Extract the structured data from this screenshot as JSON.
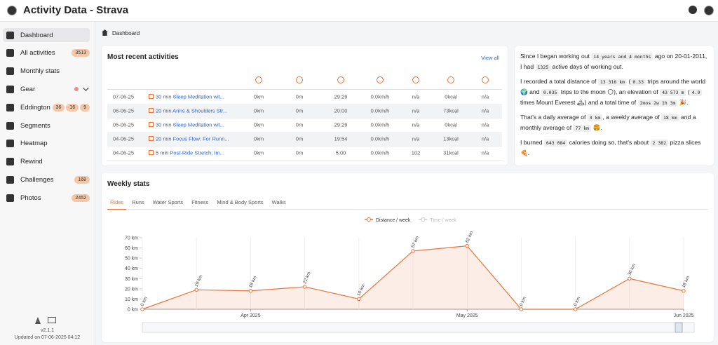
{
  "header": {
    "title": "Activity Data - Strava"
  },
  "sidebar": {
    "items": [
      {
        "label": "Dashboard"
      },
      {
        "label": "All activities",
        "badges": [
          3513
        ]
      },
      {
        "label": "Monthly stats"
      },
      {
        "label": "Gear"
      },
      {
        "label": "Eddington",
        "badges": [
          36,
          16,
          9
        ]
      },
      {
        "label": "Segments"
      },
      {
        "label": "Heatmap"
      },
      {
        "label": "Rewind"
      },
      {
        "label": "Challenges",
        "badges": [
          168
        ]
      },
      {
        "label": "Photos",
        "badges": [
          2452
        ]
      }
    ],
    "version": "v2.1.1",
    "updated": "Updated on 07-06-2025 04:12"
  },
  "breadcrumb": "Dashboard",
  "recent": {
    "title": "Most recent activities",
    "link": "View all",
    "rows": [
      [
        "07-06-25",
        "30 min Sleep Meditation wit...",
        "0km",
        "0m",
        "29:29",
        "0.0km/h",
        "n/a",
        "0kcal",
        "n/a"
      ],
      [
        "06-06-25",
        "20 min Arms & Shoulders Str...",
        "0km",
        "0m",
        "20:00",
        "0.0km/h",
        "n/a",
        "73kcal",
        "n/a"
      ],
      [
        "05-06-25",
        "30 min Sleep Meditation wit...",
        "0km",
        "0m",
        "29:29",
        "0.0km/h",
        "n/a",
        "0kcal",
        "n/a"
      ],
      [
        "04-06-25",
        "20 min Focus Flow: For Runn...",
        "0km",
        "0m",
        "19:54",
        "0.0km/h",
        "n/a",
        "13kcal",
        "n/a"
      ],
      [
        "04-06-25",
        "5 min Post-Ride Stretch: Im...",
        "0km",
        "0m",
        "5:00",
        "0.0km/h",
        "102",
        "31kcal",
        "n/a"
      ]
    ]
  },
  "intro": {
    "paragraphs": [
      [
        "Since I began working out ",
        "14 years and 4 months",
        " ago on 20-01-2011, I had ",
        "1325",
        " active days of working out."
      ],
      [
        "I recorded a total distance of ",
        "13 316 km",
        " (",
        "0.33",
        " trips around the world 🌍 and ",
        "0.035",
        " trips to the moon 🌕), an elevation of ",
        "43 573 m",
        " (",
        "4.9",
        " times Mount Everest 🏔) and a total time of ",
        "2mos 2w 1h 3m",
        " 🎉."
      ],
      [
        "That's a daily average of ",
        "3 km",
        ", a weekly average of ",
        "18 km",
        " and a monthly average of ",
        "77 km",
        " 🍔."
      ],
      [
        "I burned ",
        "643 084",
        " calories doing so, that's about ",
        "2 382",
        " pizza slices 🍕."
      ]
    ]
  },
  "weekly": {
    "title": "Weekly stats",
    "tabs": [
      "Rides",
      "Runs",
      "Water Sports",
      "Fitness",
      "Mind & Body Sports",
      "Walks"
    ],
    "chart": {
      "type": "line",
      "categories": [
        null,
        null,
        "Apr 2025",
        null,
        null,
        null,
        "May 2025",
        null,
        null,
        null,
        "Jun 2025"
      ],
      "series": [
        {
          "name": "Distance / week",
          "color": "#e8743b",
          "values": [
            0,
            19,
            18,
            22,
            10,
            57,
            62,
            0,
            0,
            30,
            18
          ],
          "value_labels": [
            "0 km",
            "19 km",
            "18 km",
            "22 km",
            "10 km",
            "57 km",
            "62 km",
            "0 km",
            "0 km",
            "30 km",
            "18 km"
          ]
        },
        {
          "name": "Time / week",
          "color": "#cccccc",
          "visible": false
        }
      ],
      "ylim": [
        0,
        70
      ],
      "yticks": [
        {
          "value": 0,
          "label": "0 km"
        },
        {
          "value": 10,
          "label": "10 km"
        },
        {
          "value": 20,
          "label": "20 km"
        },
        {
          "value": 30,
          "label": "30 km"
        },
        {
          "value": 40,
          "label": "40 km"
        },
        {
          "value": 50,
          "label": "50 km"
        },
        {
          "value": 60,
          "label": "60 km"
        },
        {
          "value": 70,
          "label": "70 km"
        }
      ]
    }
  }
}
